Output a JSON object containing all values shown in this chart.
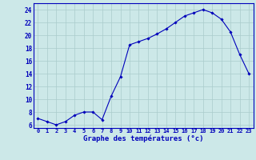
{
  "x": [
    0,
    1,
    2,
    3,
    4,
    5,
    6,
    7,
    8,
    9,
    10,
    11,
    12,
    13,
    14,
    15,
    16,
    17,
    18,
    19,
    20,
    21,
    22,
    23
  ],
  "y": [
    7.0,
    6.5,
    6.0,
    6.5,
    7.5,
    8.0,
    8.0,
    6.8,
    10.5,
    13.5,
    18.5,
    19.0,
    19.5,
    20.2,
    21.0,
    22.0,
    23.0,
    23.5,
    24.0,
    23.5,
    22.5,
    20.5,
    17.0,
    14.0
  ],
  "xlabel": "Graphe des températures (°c)",
  "ylabel_ticks": [
    6,
    8,
    10,
    12,
    14,
    16,
    18,
    20,
    22,
    24
  ],
  "ylim": [
    5.5,
    25.0
  ],
  "xlim": [
    -0.5,
    23.5
  ],
  "line_color": "#0000bb",
  "marker_color": "#0000bb",
  "bg_color": "#cce8e8",
  "grid_color": "#aacccc",
  "tick_color": "#0000bb",
  "xlabel_color": "#0000bb"
}
